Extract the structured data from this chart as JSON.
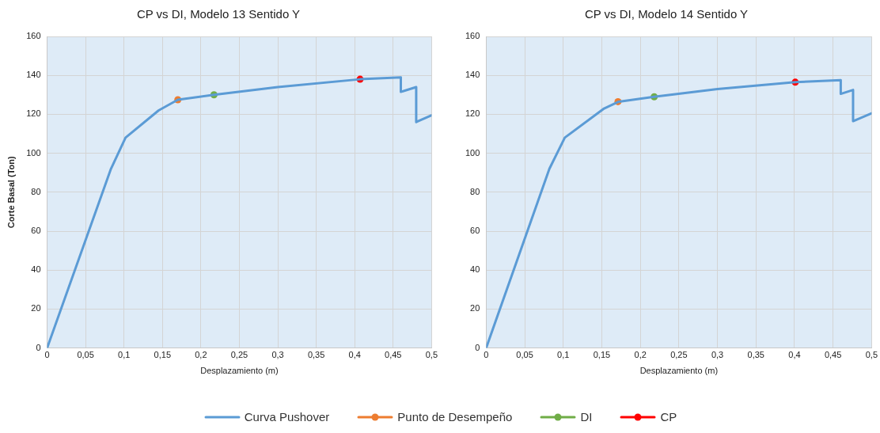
{
  "chart_data": [
    {
      "type": "line",
      "title": "CP vs DI, Modelo 13 Sentido Y",
      "xlabel": "Desplazamiento (m)",
      "ylabel": "Corte Basal (Ton)",
      "xlim": [
        0,
        0.5
      ],
      "ylim": [
        0,
        160
      ],
      "xticks": [
        0,
        {
          "value": 0.05,
          "label": "0,05"
        },
        {
          "value": 0.1,
          "label": "0,1"
        },
        {
          "value": 0.15,
          "label": "0,15"
        },
        {
          "value": 0.2,
          "label": "0,2"
        },
        {
          "value": 0.25,
          "label": "0,25"
        },
        {
          "value": 0.3,
          "label": "0,3"
        },
        {
          "value": 0.35,
          "label": "0,35"
        },
        {
          "value": 0.4,
          "label": "0,4"
        },
        {
          "value": 0.45,
          "label": "0,45"
        },
        {
          "value": 0.5,
          "label": "0,5"
        }
      ],
      "yticks": [
        0,
        20,
        40,
        60,
        80,
        100,
        120,
        140,
        160
      ],
      "grid": true,
      "legend": "bottom",
      "series": [
        {
          "name": "Curva Pushover",
          "type": "line",
          "marker": "none",
          "color": "#5b9bd5",
          "x": [
            0,
            0.083,
            0.102,
            0.145,
            0.17,
            0.217,
            0.3,
            0.407,
            0.46,
            0.46,
            0.48,
            0.48,
            0.5
          ],
          "values": [
            0,
            92,
            108,
            122,
            127.5,
            130,
            134,
            138,
            139,
            131.5,
            134,
            116,
            119.5
          ]
        },
        {
          "name": "Punto de Desempeño",
          "type": "scatter",
          "marker": "circle",
          "color": "#ed7d31",
          "x": [
            0.17
          ],
          "values": [
            127.5
          ]
        },
        {
          "name": "DI",
          "type": "scatter",
          "marker": "circle",
          "color": "#70ad47",
          "x": [
            0.217
          ],
          "values": [
            130
          ]
        },
        {
          "name": "CP",
          "type": "scatter",
          "marker": "circle",
          "color": "#ff0000",
          "x": [
            0.407
          ],
          "values": [
            138
          ]
        }
      ]
    },
    {
      "type": "line",
      "title": "CP vs DI, Modelo 14 Sentido Y",
      "xlabel": "Desplazamiento (m)",
      "xlim": [
        0,
        0.5
      ],
      "ylim": [
        0,
        160
      ],
      "xticks": [
        0,
        {
          "value": 0.05,
          "label": "0,05"
        },
        {
          "value": 0.1,
          "label": "0,1"
        },
        {
          "value": 0.15,
          "label": "0,15"
        },
        {
          "value": 0.2,
          "label": "0,2"
        },
        {
          "value": 0.25,
          "label": "0,25"
        },
        {
          "value": 0.3,
          "label": "0,3"
        },
        {
          "value": 0.35,
          "label": "0,35"
        },
        {
          "value": 0.4,
          "label": "0,4"
        },
        {
          "value": 0.45,
          "label": "0,45"
        },
        {
          "value": 0.5,
          "label": "0,5"
        }
      ],
      "yticks": [
        0,
        20,
        40,
        60,
        80,
        100,
        120,
        140,
        160
      ],
      "grid": true,
      "legend": "bottom",
      "series": [
        {
          "name": "Curva Pushover",
          "type": "line",
          "marker": "none",
          "color": "#5b9bd5",
          "x": [
            0,
            0.082,
            0.102,
            0.153,
            0.172,
            0.218,
            0.3,
            0.401,
            0.46,
            0.46,
            0.476,
            0.476,
            0.5
          ],
          "values": [
            0,
            92,
            108,
            123,
            126.5,
            129,
            133,
            136.5,
            137.5,
            130.5,
            132.5,
            116.5,
            120.5
          ]
        },
        {
          "name": "Punto de Desempeño",
          "type": "scatter",
          "marker": "circle",
          "color": "#ed7d31",
          "x": [
            0.171
          ],
          "values": [
            126.5
          ]
        },
        {
          "name": "DI",
          "type": "scatter",
          "marker": "circle",
          "color": "#70ad47",
          "x": [
            0.218
          ],
          "values": [
            129
          ]
        },
        {
          "name": "CP",
          "type": "scatter",
          "marker": "circle",
          "color": "#ff0000",
          "x": [
            0.401
          ],
          "values": [
            136.5
          ]
        }
      ]
    }
  ]
}
